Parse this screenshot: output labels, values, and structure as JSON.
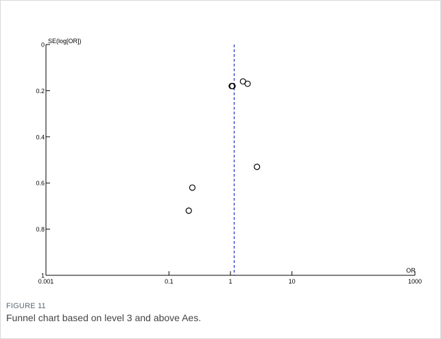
{
  "figure": {
    "label": "FIGURE 11",
    "caption": "Funnel chart based on level 3 and above Aes."
  },
  "chart_data": {
    "type": "scatter",
    "title": "",
    "xlabel": "OR",
    "ylabel": "SE(log[OR])",
    "x_scale": "log",
    "xlim": [
      0.001,
      1000
    ],
    "ylim": [
      0,
      1
    ],
    "y_inverted": true,
    "x_ticks": [
      0.001,
      0.1,
      1,
      10,
      1000
    ],
    "x_tick_labels": [
      "0.001",
      "0.1",
      "1",
      "10",
      "1000"
    ],
    "y_ticks": [
      0,
      0.2,
      0.4,
      0.6,
      0.8,
      1
    ],
    "y_tick_labels": [
      "0",
      "0.2",
      "0.4",
      "0.6",
      "0.8",
      "1"
    ],
    "pooled_or": 1.15,
    "grid": false,
    "points": [
      {
        "x": 1.05,
        "y": 0.18
      },
      {
        "x": 1.08,
        "y": 0.18
      },
      {
        "x": 1.6,
        "y": 0.16
      },
      {
        "x": 1.9,
        "y": 0.17
      },
      {
        "x": 2.7,
        "y": 0.53
      },
      {
        "x": 0.24,
        "y": 0.62
      },
      {
        "x": 0.21,
        "y": 0.72
      }
    ],
    "colors": {
      "reference_line": "#1f2fbf",
      "points": "#000000"
    }
  }
}
